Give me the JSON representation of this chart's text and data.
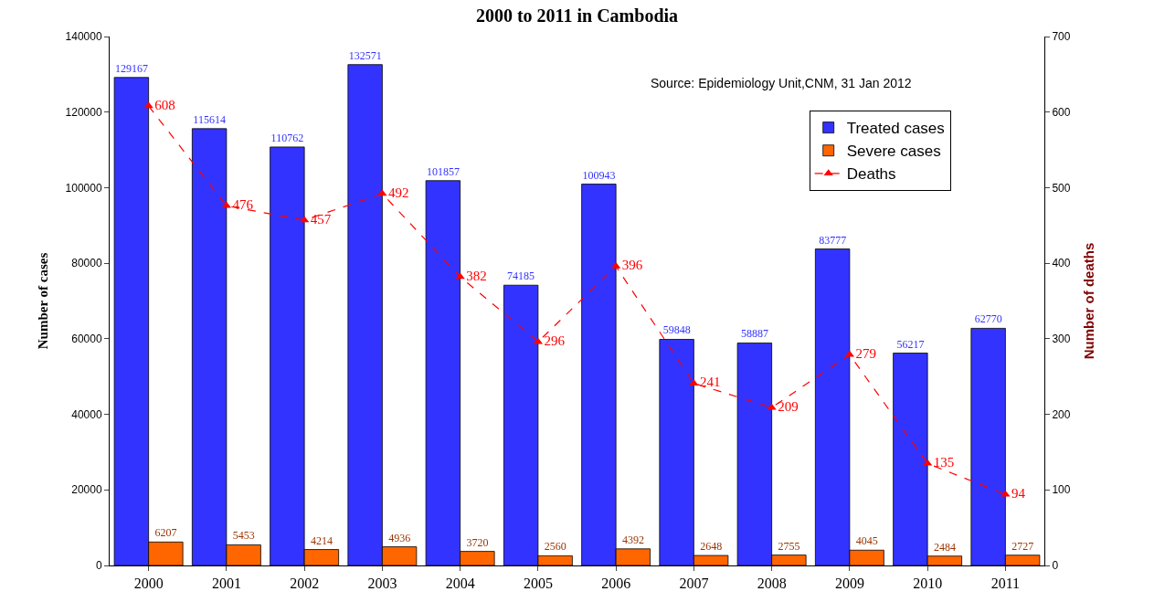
{
  "chart_data": {
    "type": "bar",
    "title": "2000 to 2011 in Cambodia",
    "ylabel": "Number of cases",
    "y2label": "Number of deaths",
    "categories": [
      "2000",
      "2001",
      "2002",
      "2003",
      "2004",
      "2005",
      "2006",
      "2007",
      "2008",
      "2009",
      "2010",
      "2011"
    ],
    "series": [
      {
        "name": "Treated cases",
        "color": "#3333ff",
        "values": [
          129167,
          115614,
          110762,
          132571,
          101857,
          74185,
          100943,
          59848,
          58887,
          83777,
          56217,
          62770
        ]
      },
      {
        "name": "Severe cases",
        "color": "#ff6600",
        "values": [
          6207,
          5453,
          4214,
          4936,
          3720,
          2560,
          4392,
          2648,
          2755,
          4045,
          2484,
          2727
        ]
      },
      {
        "name": "Deaths",
        "type": "line",
        "axis": "y2",
        "color": "#ff0000",
        "marker": "triangle",
        "line_style": "dashed",
        "values": [
          608,
          476,
          457,
          492,
          382,
          296,
          396,
          241,
          209,
          279,
          135,
          94
        ]
      }
    ],
    "ylim": [
      0,
      140000
    ],
    "yticks": [
      0,
      20000,
      40000,
      60000,
      80000,
      100000,
      120000,
      140000
    ],
    "y2lim": [
      0,
      700
    ],
    "y2ticks": [
      0,
      100,
      200,
      300,
      400,
      500,
      600,
      700
    ],
    "data_labels": true,
    "legend": "top right",
    "annotations": [
      "Source: Epidemiology Unit,CNM, 31 Jan 2012"
    ]
  }
}
